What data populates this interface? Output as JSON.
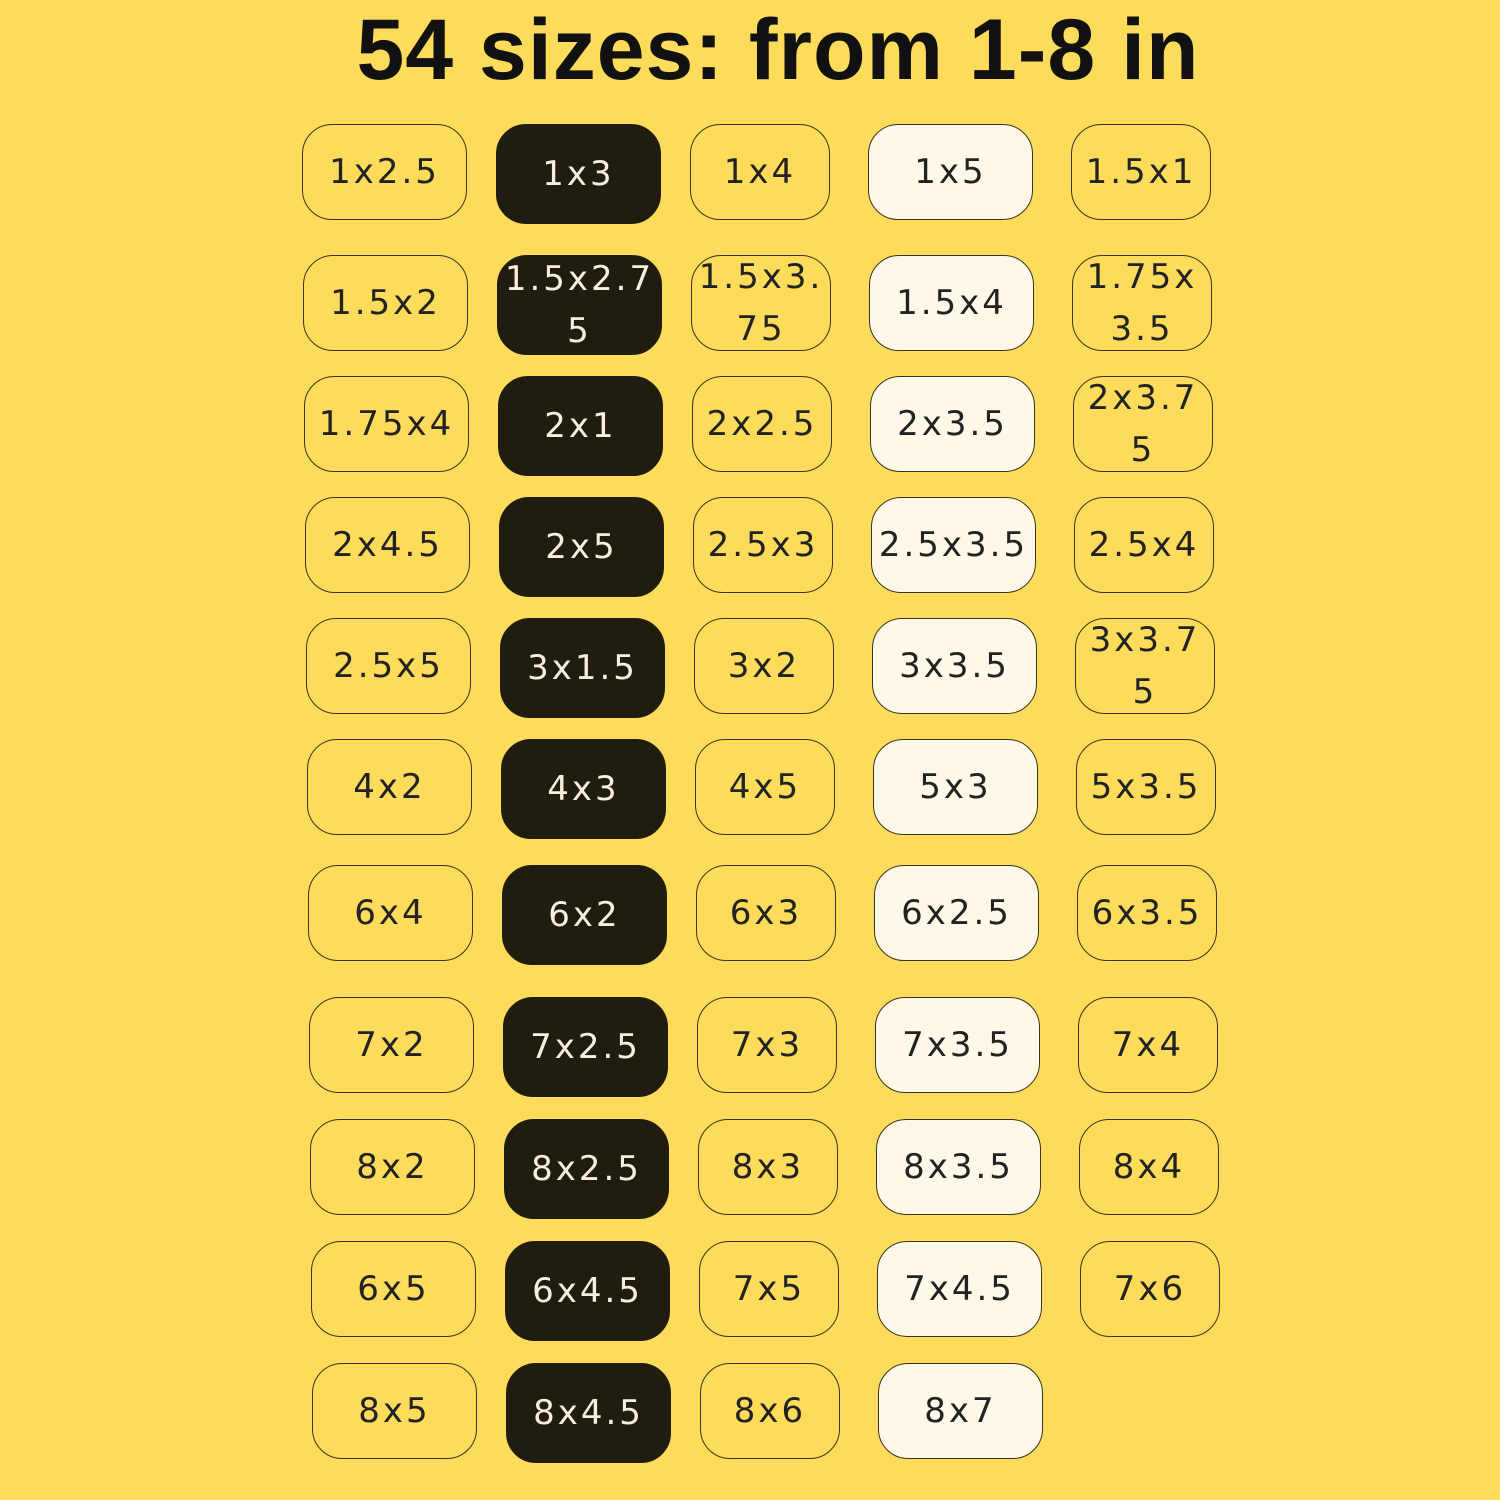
{
  "title": "54 sizes: from 1-8 in",
  "colors": {
    "background": "#fcdc5a",
    "dark_pill": "#201d10",
    "light_pill": "#fdf8e8"
  },
  "rows": [
    [
      "1x2.5",
      "1x3",
      "1x4",
      "1x5",
      "1.5x1"
    ],
    [
      "1.5x2",
      "1.5x2.75",
      "1.5x3.75",
      "1.5x4",
      "1.75x3.5"
    ],
    [
      "1.75x4",
      "2x1",
      "2x2.5",
      "2x3.5",
      "2x3.75"
    ],
    [
      "2x4.5",
      "2x5",
      "2.5x3",
      "2.5x3.5",
      "2.5x4"
    ],
    [
      "2.5x5",
      "3x1.5",
      "3x2",
      "3x3.5",
      "3x3.75"
    ],
    [
      "4x2",
      "4x3",
      "4x5",
      "5x3",
      "5x3.5"
    ],
    [
      "6x4",
      "6x2",
      "6x3",
      "6x2.5",
      "6x3.5"
    ],
    [
      "7x2",
      "7x2.5",
      "7x3",
      "7x3.5",
      "7x4"
    ],
    [
      "8x2",
      "8x2.5",
      "8x3",
      "8x3.5",
      "8x4"
    ],
    [
      "6x5",
      "6x4.5",
      "7x5",
      "7x4.5",
      "7x6"
    ],
    [
      "8x5",
      "8x4.5",
      "8x6",
      "8x7"
    ]
  ]
}
